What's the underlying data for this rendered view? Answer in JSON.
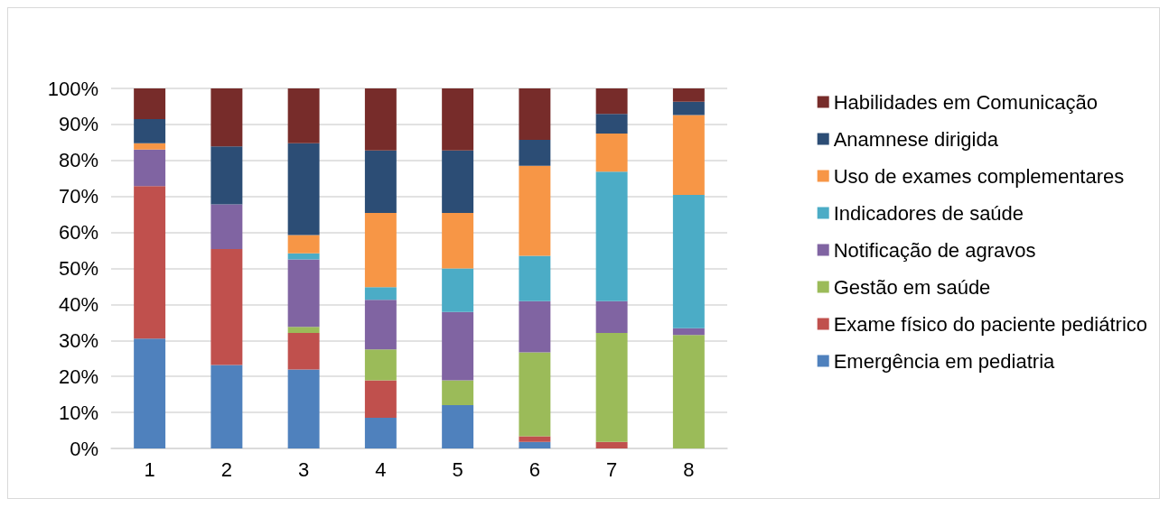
{
  "chart_data": {
    "type": "bar",
    "stacked": true,
    "categories": [
      "1",
      "2",
      "3",
      "4",
      "5",
      "6",
      "7",
      "8"
    ],
    "series": [
      {
        "name": "Emergência em pediatria",
        "color": "#4f81bd",
        "values": [
          30.5,
          23.2,
          21.9,
          8.5,
          12.0,
          1.8,
          0,
          0
        ]
      },
      {
        "name": "Exame físico do paciente pediátrico",
        "color": "#c0504d",
        "values": [
          42.4,
          32.2,
          10.2,
          10.4,
          0,
          1.6,
          1.8,
          0
        ]
      },
      {
        "name": "Gestão em saúde",
        "color": "#9bbb59",
        "values": [
          0,
          0,
          1.7,
          8.6,
          6.9,
          23.3,
          30.3,
          31.5
        ]
      },
      {
        "name": "Notificação de agravos",
        "color": "#8064a2",
        "values": [
          10.1,
          12.4,
          18.7,
          13.8,
          19.0,
          14.2,
          8.8,
          1.9
        ]
      },
      {
        "name": "Indicadores de saúde",
        "color": "#4bacc6",
        "values": [
          0,
          0,
          1.7,
          3.5,
          12.1,
          12.6,
          36.0,
          37.0
        ]
      },
      {
        "name": "Uso de exames complementares",
        "color": "#f79646",
        "values": [
          1.8,
          0,
          5.1,
          20.6,
          15.4,
          25.0,
          10.6,
          22.2
        ]
      },
      {
        "name": "Anamnese dirigida",
        "color": "#2c4d75",
        "values": [
          6.7,
          16.1,
          25.5,
          17.4,
          17.4,
          7.2,
          5.4,
          3.7
        ]
      },
      {
        "name": "Habilidades em Comunicação",
        "color": "#772c2a",
        "values": [
          8.5,
          16.1,
          15.2,
          17.2,
          17.2,
          14.3,
          7.1,
          3.7
        ]
      }
    ],
    "ylim": [
      0,
      100
    ],
    "yticks": [
      {
        "value": 0,
        "label": "0%"
      },
      {
        "value": 10,
        "label": "10%"
      },
      {
        "value": 20,
        "label": "20%"
      },
      {
        "value": 30,
        "label": "30%"
      },
      {
        "value": 40,
        "label": "40%"
      },
      {
        "value": 50,
        "label": "50%"
      },
      {
        "value": 60,
        "label": "60%"
      },
      {
        "value": 70,
        "label": "70%"
      },
      {
        "value": 80,
        "label": "80%"
      },
      {
        "value": 90,
        "label": "90%"
      },
      {
        "value": 100,
        "label": "100%"
      }
    ],
    "grid": "y",
    "legend": "right"
  }
}
